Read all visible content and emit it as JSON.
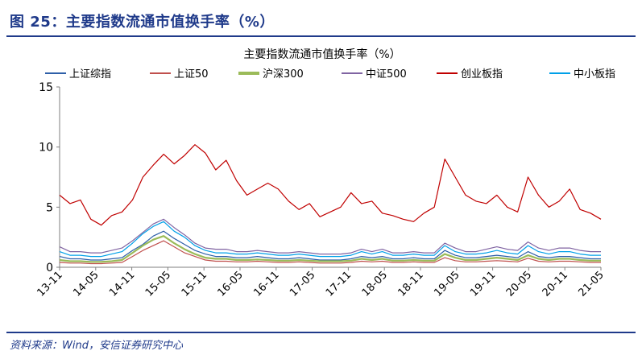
{
  "figure": {
    "label": "图 25：",
    "title": "主要指数流通市值换手率（%）",
    "source": "资料来源：Wind，安信证券研究中心"
  },
  "chart_data": {
    "type": "line",
    "title": "主要指数流通市值换手率（%）",
    "xlabel": "",
    "ylabel": "",
    "ylim": [
      0,
      15
    ],
    "yticks": [
      "0",
      "5",
      "10",
      "15"
    ],
    "xticks": [
      "13-11",
      "14-05",
      "14-11",
      "15-05",
      "15-11",
      "16-05",
      "16-11",
      "17-05",
      "17-11",
      "18-05",
      "18-11",
      "19-05",
      "19-11",
      "20-05",
      "20-11",
      "21-05"
    ],
    "grid": false,
    "legend_position": "top",
    "series": [
      {
        "name": "上证综指",
        "color": "#2e5fa8",
        "values": [
          0.9,
          0.7,
          0.7,
          0.6,
          0.6,
          0.7,
          0.8,
          1.4,
          1.9,
          2.6,
          3.0,
          2.4,
          1.9,
          1.4,
          1.1,
          0.9,
          0.9,
          0.8,
          0.8,
          0.9,
          0.8,
          0.7,
          0.7,
          0.8,
          0.7,
          0.6,
          0.6,
          0.6,
          0.7,
          0.9,
          0.8,
          0.9,
          0.7,
          0.7,
          0.8,
          0.7,
          0.7,
          1.4,
          1.0,
          0.8,
          0.8,
          0.9,
          1.0,
          0.9,
          0.8,
          1.3,
          0.9,
          0.8,
          0.9,
          0.9,
          0.8,
          0.7,
          0.7
        ]
      },
      {
        "name": "上证50",
        "color": "#c0504d",
        "values": [
          0.4,
          0.35,
          0.35,
          0.3,
          0.3,
          0.35,
          0.4,
          0.9,
          1.4,
          1.8,
          2.2,
          1.7,
          1.2,
          0.9,
          0.6,
          0.5,
          0.5,
          0.45,
          0.45,
          0.5,
          0.45,
          0.4,
          0.4,
          0.45,
          0.4,
          0.35,
          0.35,
          0.35,
          0.4,
          0.5,
          0.45,
          0.5,
          0.4,
          0.4,
          0.45,
          0.4,
          0.4,
          0.8,
          0.55,
          0.45,
          0.45,
          0.5,
          0.55,
          0.5,
          0.45,
          0.75,
          0.5,
          0.45,
          0.5,
          0.5,
          0.45,
          0.4,
          0.4
        ]
      },
      {
        "name": "沪深300",
        "color": "#9bbb59",
        "values": [
          0.6,
          0.5,
          0.5,
          0.45,
          0.45,
          0.5,
          0.6,
          1.2,
          1.8,
          2.3,
          2.6,
          2.0,
          1.5,
          1.1,
          0.8,
          0.7,
          0.7,
          0.6,
          0.6,
          0.65,
          0.6,
          0.55,
          0.55,
          0.6,
          0.55,
          0.5,
          0.5,
          0.5,
          0.55,
          0.7,
          0.6,
          0.7,
          0.55,
          0.55,
          0.6,
          0.55,
          0.55,
          1.1,
          0.8,
          0.6,
          0.6,
          0.7,
          0.8,
          0.7,
          0.6,
          1.0,
          0.7,
          0.6,
          0.7,
          0.7,
          0.6,
          0.55,
          0.55
        ]
      },
      {
        "name": "中证500",
        "color": "#8064a2",
        "values": [
          1.7,
          1.3,
          1.3,
          1.2,
          1.2,
          1.4,
          1.6,
          2.2,
          2.9,
          3.6,
          4.0,
          3.3,
          2.7,
          2.0,
          1.6,
          1.5,
          1.5,
          1.3,
          1.3,
          1.4,
          1.3,
          1.2,
          1.2,
          1.3,
          1.2,
          1.1,
          1.1,
          1.1,
          1.2,
          1.5,
          1.3,
          1.5,
          1.2,
          1.2,
          1.3,
          1.2,
          1.2,
          2.0,
          1.6,
          1.3,
          1.3,
          1.5,
          1.7,
          1.5,
          1.4,
          2.1,
          1.6,
          1.4,
          1.6,
          1.6,
          1.4,
          1.3,
          1.3
        ]
      },
      {
        "name": "创业板指",
        "color": "#c00000",
        "values": [
          6.0,
          5.3,
          5.6,
          4.0,
          3.5,
          4.3,
          4.6,
          5.6,
          7.5,
          8.5,
          9.4,
          8.6,
          9.3,
          10.2,
          9.5,
          8.1,
          8.9,
          7.2,
          6.0,
          6.5,
          7.0,
          6.5,
          5.5,
          4.8,
          5.3,
          4.2,
          4.6,
          5.0,
          6.2,
          5.3,
          5.5,
          4.5,
          4.3,
          4.0,
          3.8,
          4.5,
          5.0,
          9.0,
          7.5,
          6.0,
          5.5,
          5.3,
          6.0,
          5.0,
          4.6,
          7.5,
          6.0,
          5.0,
          5.5,
          6.5,
          4.8,
          4.5,
          4.0
        ]
      },
      {
        "name": "中小板指",
        "color": "#00a0e8",
        "values": [
          1.3,
          1.0,
          1.0,
          0.9,
          0.9,
          1.1,
          1.3,
          2.0,
          2.8,
          3.4,
          3.8,
          3.0,
          2.5,
          1.8,
          1.4,
          1.2,
          1.2,
          1.1,
          1.1,
          1.2,
          1.1,
          1.0,
          1.0,
          1.1,
          1.0,
          0.9,
          0.9,
          0.9,
          1.0,
          1.3,
          1.1,
          1.3,
          1.0,
          1.0,
          1.1,
          1.0,
          1.0,
          1.8,
          1.3,
          1.1,
          1.1,
          1.2,
          1.4,
          1.2,
          1.1,
          1.8,
          1.3,
          1.1,
          1.3,
          1.3,
          1.1,
          1.0,
          1.0
        ]
      }
    ]
  }
}
